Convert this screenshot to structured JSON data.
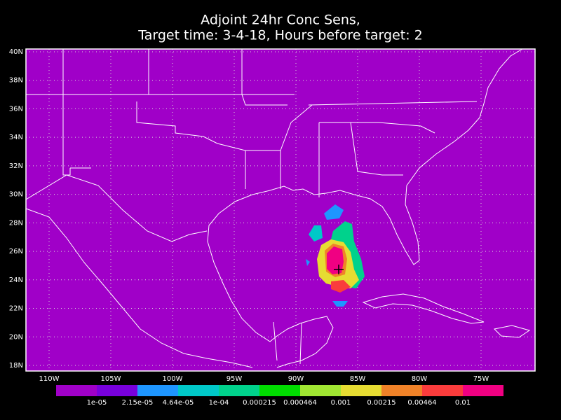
{
  "title": {
    "line1": "Adjoint 24hr Conc Sens,",
    "line2": "Target time: 3-4-18, Hours before target: 2"
  },
  "axes": {
    "lon_labels": [
      "110W",
      "105W",
      "100W",
      "95W",
      "90W",
      "85W",
      "80W",
      "75W"
    ],
    "lat_labels": [
      "18N",
      "20N",
      "22N",
      "24N",
      "26N",
      "28N",
      "30N",
      "32N",
      "34N",
      "36N",
      "38N",
      "40N"
    ]
  },
  "colorbar": {
    "colors": [
      "#a000c8",
      "#7800dc",
      "#1e96ff",
      "#00c8c8",
      "#00d28c",
      "#00dc00",
      "#a0e632",
      "#e6dc32",
      "#f08228",
      "#fa3c3c",
      "#f00082"
    ],
    "labels": [
      "1e-05",
      "2.15e-05",
      "4.64e-05",
      "1e-04",
      "0.000215",
      "0.000464",
      "0.001",
      "0.00215",
      "0.00464",
      "0.01"
    ]
  }
}
